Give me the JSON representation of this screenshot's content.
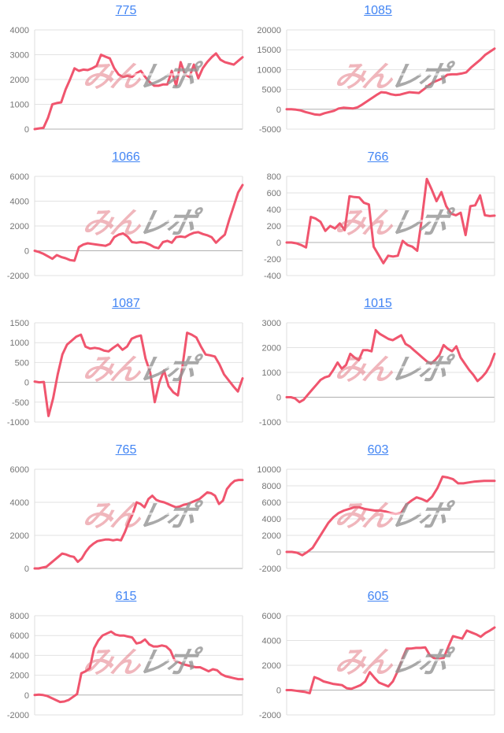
{
  "style": {
    "background": "#ffffff",
    "line_color": "#f0556e",
    "grid_color": "#e2e2e2",
    "zero_line_color": "#b0b0b0",
    "plot_border_color": "#dddddd",
    "tick_label_color": "#757575",
    "title_link_color": "#4285f4"
  },
  "watermark": {
    "text_red": "みん",
    "text_gray": "レポ",
    "red_color": "rgba(226,110,122,0.5)",
    "gray_color": "rgba(148,148,148,0.8)"
  },
  "chart_data": [
    {
      "type": "line",
      "title": "775",
      "xlabel": "",
      "ylabel": "",
      "ylim": [
        0,
        4000
      ],
      "yticks": [
        0,
        1000,
        2000,
        3000,
        4000
      ],
      "legend": "none",
      "grid": true,
      "values": [
        0,
        30,
        50,
        450,
        1000,
        1050,
        1080,
        1600,
        2000,
        2450,
        2350,
        2400,
        2380,
        2450,
        2550,
        3000,
        2920,
        2850,
        2450,
        2200,
        2100,
        2150,
        2100,
        2250,
        2350,
        2100,
        1900,
        1750,
        1750,
        1800,
        1800,
        2350,
        1750,
        2700,
        2200,
        2100,
        2600,
        2050,
        2450,
        2700,
        2900,
        3050,
        2800,
        2700,
        2650,
        2600,
        2750,
        2900
      ]
    },
    {
      "type": "line",
      "title": "1085",
      "xlabel": "",
      "ylabel": "",
      "ylim": [
        -5000,
        20000
      ],
      "yticks": [
        -5000,
        0,
        5000,
        10000,
        15000,
        20000
      ],
      "legend": "none",
      "grid": true,
      "values": [
        0,
        0,
        -100,
        -300,
        -700,
        -1000,
        -1300,
        -1400,
        -1000,
        -700,
        -400,
        200,
        400,
        300,
        200,
        500,
        1200,
        2000,
        2800,
        3600,
        4300,
        4200,
        3800,
        3600,
        3700,
        4000,
        4300,
        4200,
        4100,
        5000,
        6000,
        6800,
        7300,
        7800,
        8700,
        8800,
        8800,
        9000,
        9300,
        10500,
        11500,
        12500,
        13700,
        14500,
        15300
      ]
    },
    {
      "type": "line",
      "title": "1066",
      "xlabel": "",
      "ylabel": "",
      "ylim": [
        -2000,
        6000
      ],
      "yticks": [
        -2000,
        0,
        2000,
        4000,
        6000
      ],
      "legend": "none",
      "grid": true,
      "values": [
        0,
        -100,
        -250,
        -450,
        -650,
        -350,
        -500,
        -600,
        -750,
        -800,
        300,
        500,
        600,
        550,
        500,
        450,
        400,
        550,
        1100,
        1300,
        1400,
        1150,
        700,
        650,
        700,
        650,
        500,
        300,
        200,
        700,
        800,
        650,
        1100,
        1150,
        1100,
        1300,
        1450,
        1500,
        1350,
        1250,
        1100,
        650,
        1000,
        1300,
        2500,
        3600,
        4700,
        5300
      ]
    },
    {
      "type": "line",
      "title": "766",
      "xlabel": "",
      "ylabel": "",
      "ylim": [
        -400,
        800
      ],
      "yticks": [
        -400,
        -200,
        0,
        200,
        400,
        600,
        800
      ],
      "legend": "none",
      "grid": true,
      "values": [
        0,
        0,
        -10,
        -30,
        -60,
        310,
        290,
        250,
        140,
        200,
        170,
        230,
        150,
        560,
        550,
        545,
        480,
        460,
        -50,
        -150,
        -250,
        -160,
        -170,
        -160,
        20,
        -30,
        -50,
        -100,
        300,
        770,
        640,
        500,
        610,
        440,
        350,
        330,
        360,
        90,
        440,
        450,
        570,
        330,
        320,
        325
      ]
    },
    {
      "type": "line",
      "title": "1087",
      "xlabel": "",
      "ylabel": "",
      "ylim": [
        -1000,
        1500
      ],
      "yticks": [
        -1000,
        -500,
        0,
        500,
        1000,
        1500
      ],
      "legend": "none",
      "grid": true,
      "values": [
        20,
        0,
        10,
        -850,
        -400,
        200,
        700,
        950,
        1050,
        1150,
        1200,
        900,
        850,
        870,
        850,
        800,
        780,
        870,
        950,
        820,
        900,
        1100,
        1150,
        1180,
        600,
        250,
        -500,
        0,
        300,
        -100,
        -250,
        -330,
        400,
        1250,
        1200,
        1130,
        900,
        700,
        680,
        650,
        450,
        200,
        50,
        -100,
        -230,
        100
      ]
    },
    {
      "type": "line",
      "title": "1015",
      "xlabel": "",
      "ylabel": "",
      "ylim": [
        -1000,
        3000
      ],
      "yticks": [
        -1000,
        0,
        1000,
        2000,
        3000
      ],
      "legend": "none",
      "grid": true,
      "values": [
        0,
        0,
        -50,
        -200,
        -100,
        100,
        300,
        500,
        700,
        800,
        850,
        1100,
        1400,
        1150,
        1300,
        1750,
        1600,
        1500,
        1900,
        1900,
        1850,
        2700,
        2550,
        2450,
        2350,
        2300,
        2400,
        2500,
        2150,
        2050,
        1900,
        1750,
        1600,
        1450,
        1350,
        1500,
        1700,
        2100,
        1950,
        1850,
        2050,
        1600,
        1350,
        1100,
        900,
        650,
        800,
        1000,
        1300,
        1750
      ]
    },
    {
      "type": "line",
      "title": "765",
      "xlabel": "",
      "ylabel": "",
      "ylim": [
        0,
        6000
      ],
      "yticks": [
        0,
        2000,
        4000,
        6000
      ],
      "legend": "none",
      "grid": true,
      "values": [
        0,
        0,
        50,
        100,
        300,
        500,
        700,
        900,
        850,
        750,
        700,
        400,
        600,
        1000,
        1300,
        1500,
        1650,
        1700,
        1750,
        1750,
        1700,
        1750,
        1700,
        2200,
        2800,
        3300,
        4000,
        3900,
        3700,
        4200,
        4400,
        4150,
        4050,
        4000,
        3900,
        3800,
        3700,
        3750,
        3850,
        3900,
        4000,
        4100,
        4200,
        4400,
        4600,
        4550,
        4400,
        3900,
        4100,
        4800,
        5100,
        5300,
        5350,
        5350
      ]
    },
    {
      "type": "line",
      "title": "603",
      "xlabel": "",
      "ylabel": "",
      "ylim": [
        -2000,
        10000
      ],
      "yticks": [
        -2000,
        0,
        2000,
        4000,
        6000,
        8000,
        10000
      ],
      "legend": "none",
      "grid": true,
      "values": [
        0,
        0,
        -100,
        -400,
        0,
        500,
        1500,
        2500,
        3500,
        4200,
        4700,
        5000,
        5200,
        5400,
        5400,
        5200,
        5100,
        5000,
        5000,
        4900,
        4700,
        4600,
        4700,
        5700,
        6200,
        6600,
        6400,
        6100,
        6700,
        7700,
        9100,
        9000,
        8800,
        8300,
        8300,
        8400,
        8500,
        8550,
        8600,
        8600,
        8600
      ]
    },
    {
      "type": "line",
      "title": "615",
      "xlabel": "",
      "ylabel": "",
      "ylim": [
        -2000,
        8000
      ],
      "yticks": [
        -2000,
        0,
        2000,
        4000,
        6000,
        8000
      ],
      "legend": "none",
      "grid": true,
      "values": [
        0,
        50,
        0,
        -100,
        -300,
        -500,
        -700,
        -650,
        -500,
        -200,
        100,
        2200,
        2400,
        2700,
        4700,
        5500,
        6000,
        6200,
        6400,
        6100,
        6000,
        6000,
        5900,
        5800,
        5200,
        5300,
        5600,
        5100,
        4900,
        4900,
        5000,
        4900,
        4500,
        3500,
        3300,
        3100,
        3000,
        2900,
        2800,
        2800,
        2600,
        2400,
        2600,
        2500,
        2100,
        1900,
        1800,
        1700,
        1600,
        1600
      ]
    },
    {
      "type": "line",
      "title": "605",
      "xlabel": "",
      "ylabel": "",
      "ylim": [
        -2000,
        6000
      ],
      "yticks": [
        -2000,
        0,
        2000,
        4000,
        6000
      ],
      "legend": "none",
      "grid": true,
      "values": [
        0,
        0,
        -50,
        -100,
        -150,
        -250,
        1050,
        900,
        700,
        600,
        500,
        450,
        400,
        150,
        100,
        250,
        400,
        700,
        1450,
        1000,
        600,
        450,
        300,
        700,
        1500,
        2500,
        3350,
        3350,
        3400,
        3400,
        3450,
        2800,
        2550,
        2500,
        2600,
        3500,
        4350,
        4250,
        4150,
        4800,
        4650,
        4500,
        4300,
        4600,
        4800,
        5050
      ]
    }
  ]
}
